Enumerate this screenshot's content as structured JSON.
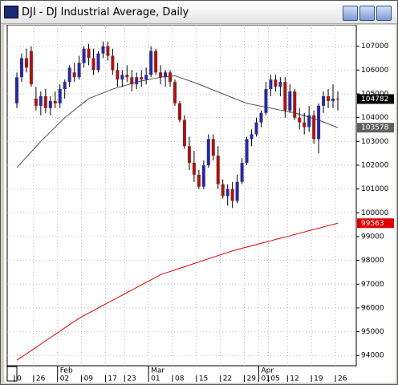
{
  "chart_data": {
    "type": "candlestick",
    "title": "DJI - DJ Industrial Average, Daily",
    "categories": [
      "0",
      null,
      null,
      null,
      "26",
      null,
      null,
      null,
      null,
      "02",
      null,
      null,
      null,
      null,
      "09",
      null,
      null,
      null,
      null,
      "17",
      null,
      null,
      null,
      "23",
      null,
      null,
      null,
      null,
      "01",
      null,
      null,
      null,
      null,
      "08",
      null,
      null,
      null,
      null,
      "15",
      null,
      null,
      null,
      null,
      "22",
      null,
      null,
      null,
      null,
      "29",
      null,
      null,
      "01",
      null,
      "05",
      null,
      null,
      null,
      "12",
      null,
      null,
      null,
      null,
      "19",
      null,
      null,
      null,
      null,
      "26"
    ],
    "months": [
      null,
      null,
      null,
      null,
      null,
      null,
      null,
      null,
      null,
      "Feb",
      null,
      null,
      null,
      null,
      null,
      null,
      null,
      null,
      null,
      null,
      null,
      null,
      null,
      null,
      null,
      null,
      null,
      null,
      "Mar",
      null,
      null,
      null,
      null,
      null,
      null,
      null,
      null,
      null,
      null,
      null,
      null,
      null,
      null,
      null,
      null,
      null,
      null,
      null,
      null,
      null,
      null,
      "Apr",
      null,
      null,
      null,
      null,
      null,
      null,
      null,
      null,
      null,
      null,
      null,
      null,
      null,
      null,
      null,
      null
    ],
    "open": [
      104600,
      105700,
      106500,
      106800,
      104800,
      104500,
      104900,
      104400,
      104700,
      104600,
      105200,
      105500,
      105900,
      105700,
      106300,
      106900,
      106500,
      106000,
      106700,
      107000,
      106600,
      106000,
      105600,
      105800,
      105700,
      105400,
      105700,
      105600,
      105800,
      106800,
      105900,
      105700,
      105900,
      105500,
      104600,
      103900,
      102800,
      102100,
      101600,
      101100,
      102000,
      103100,
      102400,
      101200,
      100700,
      101000,
      100500,
      101300,
      102100,
      103100,
      103300,
      103800,
      104200,
      105200,
      105600,
      105300,
      105500,
      104300,
      105100,
      104000,
      103800,
      103600,
      104100,
      103100,
      104500,
      104900,
      104700,
      104800
    ],
    "high": [
      105900,
      106700,
      106900,
      107000,
      105300,
      105100,
      105200,
      104900,
      105100,
      105400,
      105600,
      106200,
      106300,
      106600,
      107000,
      107100,
      106900,
      106800,
      107200,
      107200,
      106900,
      106300,
      106000,
      106200,
      106000,
      105900,
      106000,
      106100,
      107000,
      106900,
      106200,
      106000,
      106000,
      105600,
      104700,
      104100,
      103200,
      102600,
      101800,
      102200,
      103300,
      103300,
      102800,
      101400,
      101200,
      101300,
      101600,
      102300,
      103200,
      103500,
      104000,
      104300,
      105500,
      105800,
      105800,
      105700,
      105700,
      105400,
      105200,
      104400,
      104200,
      104500,
      104300,
      104600,
      105100,
      105200,
      105400,
      105100
    ],
    "low": [
      104400,
      105500,
      105900,
      105300,
      104300,
      104100,
      104200,
      104100,
      104400,
      104400,
      104800,
      105300,
      105500,
      105600,
      106100,
      106200,
      105800,
      105900,
      106500,
      106400,
      105800,
      105300,
      105300,
      105500,
      105100,
      105200,
      105300,
      105400,
      105700,
      105800,
      105400,
      105300,
      105300,
      104500,
      103800,
      102700,
      101800,
      101300,
      101000,
      101000,
      101900,
      102200,
      101000,
      100600,
      100300,
      100200,
      100400,
      101200,
      102000,
      102800,
      103200,
      103600,
      104100,
      104900,
      105100,
      104900,
      104000,
      104200,
      103900,
      103500,
      103300,
      103400,
      102900,
      102500,
      104200,
      104400,
      104400,
      104300
    ],
    "close": [
      105700,
      106500,
      106100,
      105400,
      104500,
      104900,
      104400,
      104700,
      104600,
      105200,
      105500,
      106100,
      105700,
      106300,
      106900,
      106500,
      106000,
      106700,
      107000,
      106600,
      106000,
      105600,
      105800,
      105700,
      105400,
      105700,
      105600,
      105800,
      106800,
      105900,
      105700,
      105900,
      105500,
      104600,
      103900,
      102800,
      102100,
      101600,
      101100,
      102000,
      103100,
      102400,
      101200,
      100700,
      101000,
      100500,
      101300,
      102100,
      103100,
      103300,
      103800,
      104200,
      105200,
      105600,
      105300,
      105500,
      104300,
      105100,
      104000,
      103800,
      103600,
      104100,
      103100,
      104500,
      104900,
      104700,
      104800,
      104782
    ],
    "up_color": "#2a2a9a",
    "down_color": "#a01818",
    "lines": [
      {
        "color": "#555555",
        "values": [
          101900,
          102120,
          102340,
          102560,
          102780,
          103000,
          103200,
          103400,
          103600,
          103800,
          104000,
          104160,
          104320,
          104480,
          104640,
          104800,
          104880,
          104960,
          105040,
          105120,
          105200,
          105260,
          105320,
          105380,
          105440,
          105500,
          105540,
          105580,
          105620,
          105660,
          105700,
          105720,
          105740,
          105760,
          105690,
          105620,
          105550,
          105480,
          105400,
          105320,
          105240,
          105160,
          105080,
          105000,
          104920,
          104840,
          104760,
          104680,
          104600,
          104560,
          104520,
          104480,
          104440,
          104400,
          104360,
          104320,
          104280,
          104240,
          104200,
          104140,
          104080,
          104020,
          103960,
          103900,
          103820,
          103740,
          103660,
          103578
        ]
      },
      {
        "color": "#dd0000",
        "values": [
          93800,
          93940,
          94070,
          94210,
          94340,
          94480,
          94620,
          94750,
          94890,
          95020,
          95160,
          95300,
          95430,
          95570,
          95680,
          95790,
          95890,
          96000,
          96110,
          96220,
          96320,
          96430,
          96540,
          96650,
          96750,
          96860,
          96970,
          97080,
          97180,
          97290,
          97400,
          97470,
          97530,
          97600,
          97670,
          97730,
          97800,
          97870,
          97930,
          98000,
          98070,
          98130,
          98200,
          98270,
          98330,
          98400,
          98450,
          98510,
          98560,
          98610,
          98660,
          98720,
          98770,
          98820,
          98880,
          98930,
          98980,
          99030,
          99090,
          99140,
          99190,
          99250,
          99300,
          99350,
          99410,
          99460,
          99510,
          99563
        ]
      }
    ],
    "price_labels": [
      {
        "value": 104782,
        "color": "#000000"
      },
      {
        "value": 103578,
        "color": "#606060"
      },
      {
        "value": 99563,
        "color": "#dd0000"
      }
    ],
    "ylim": [
      93570,
      107900
    ],
    "yticks": [
      94000,
      95000,
      96000,
      97000,
      98000,
      99000,
      100000,
      101000,
      102000,
      103000,
      104000,
      105000,
      106000,
      107000
    ],
    "grid": true
  }
}
